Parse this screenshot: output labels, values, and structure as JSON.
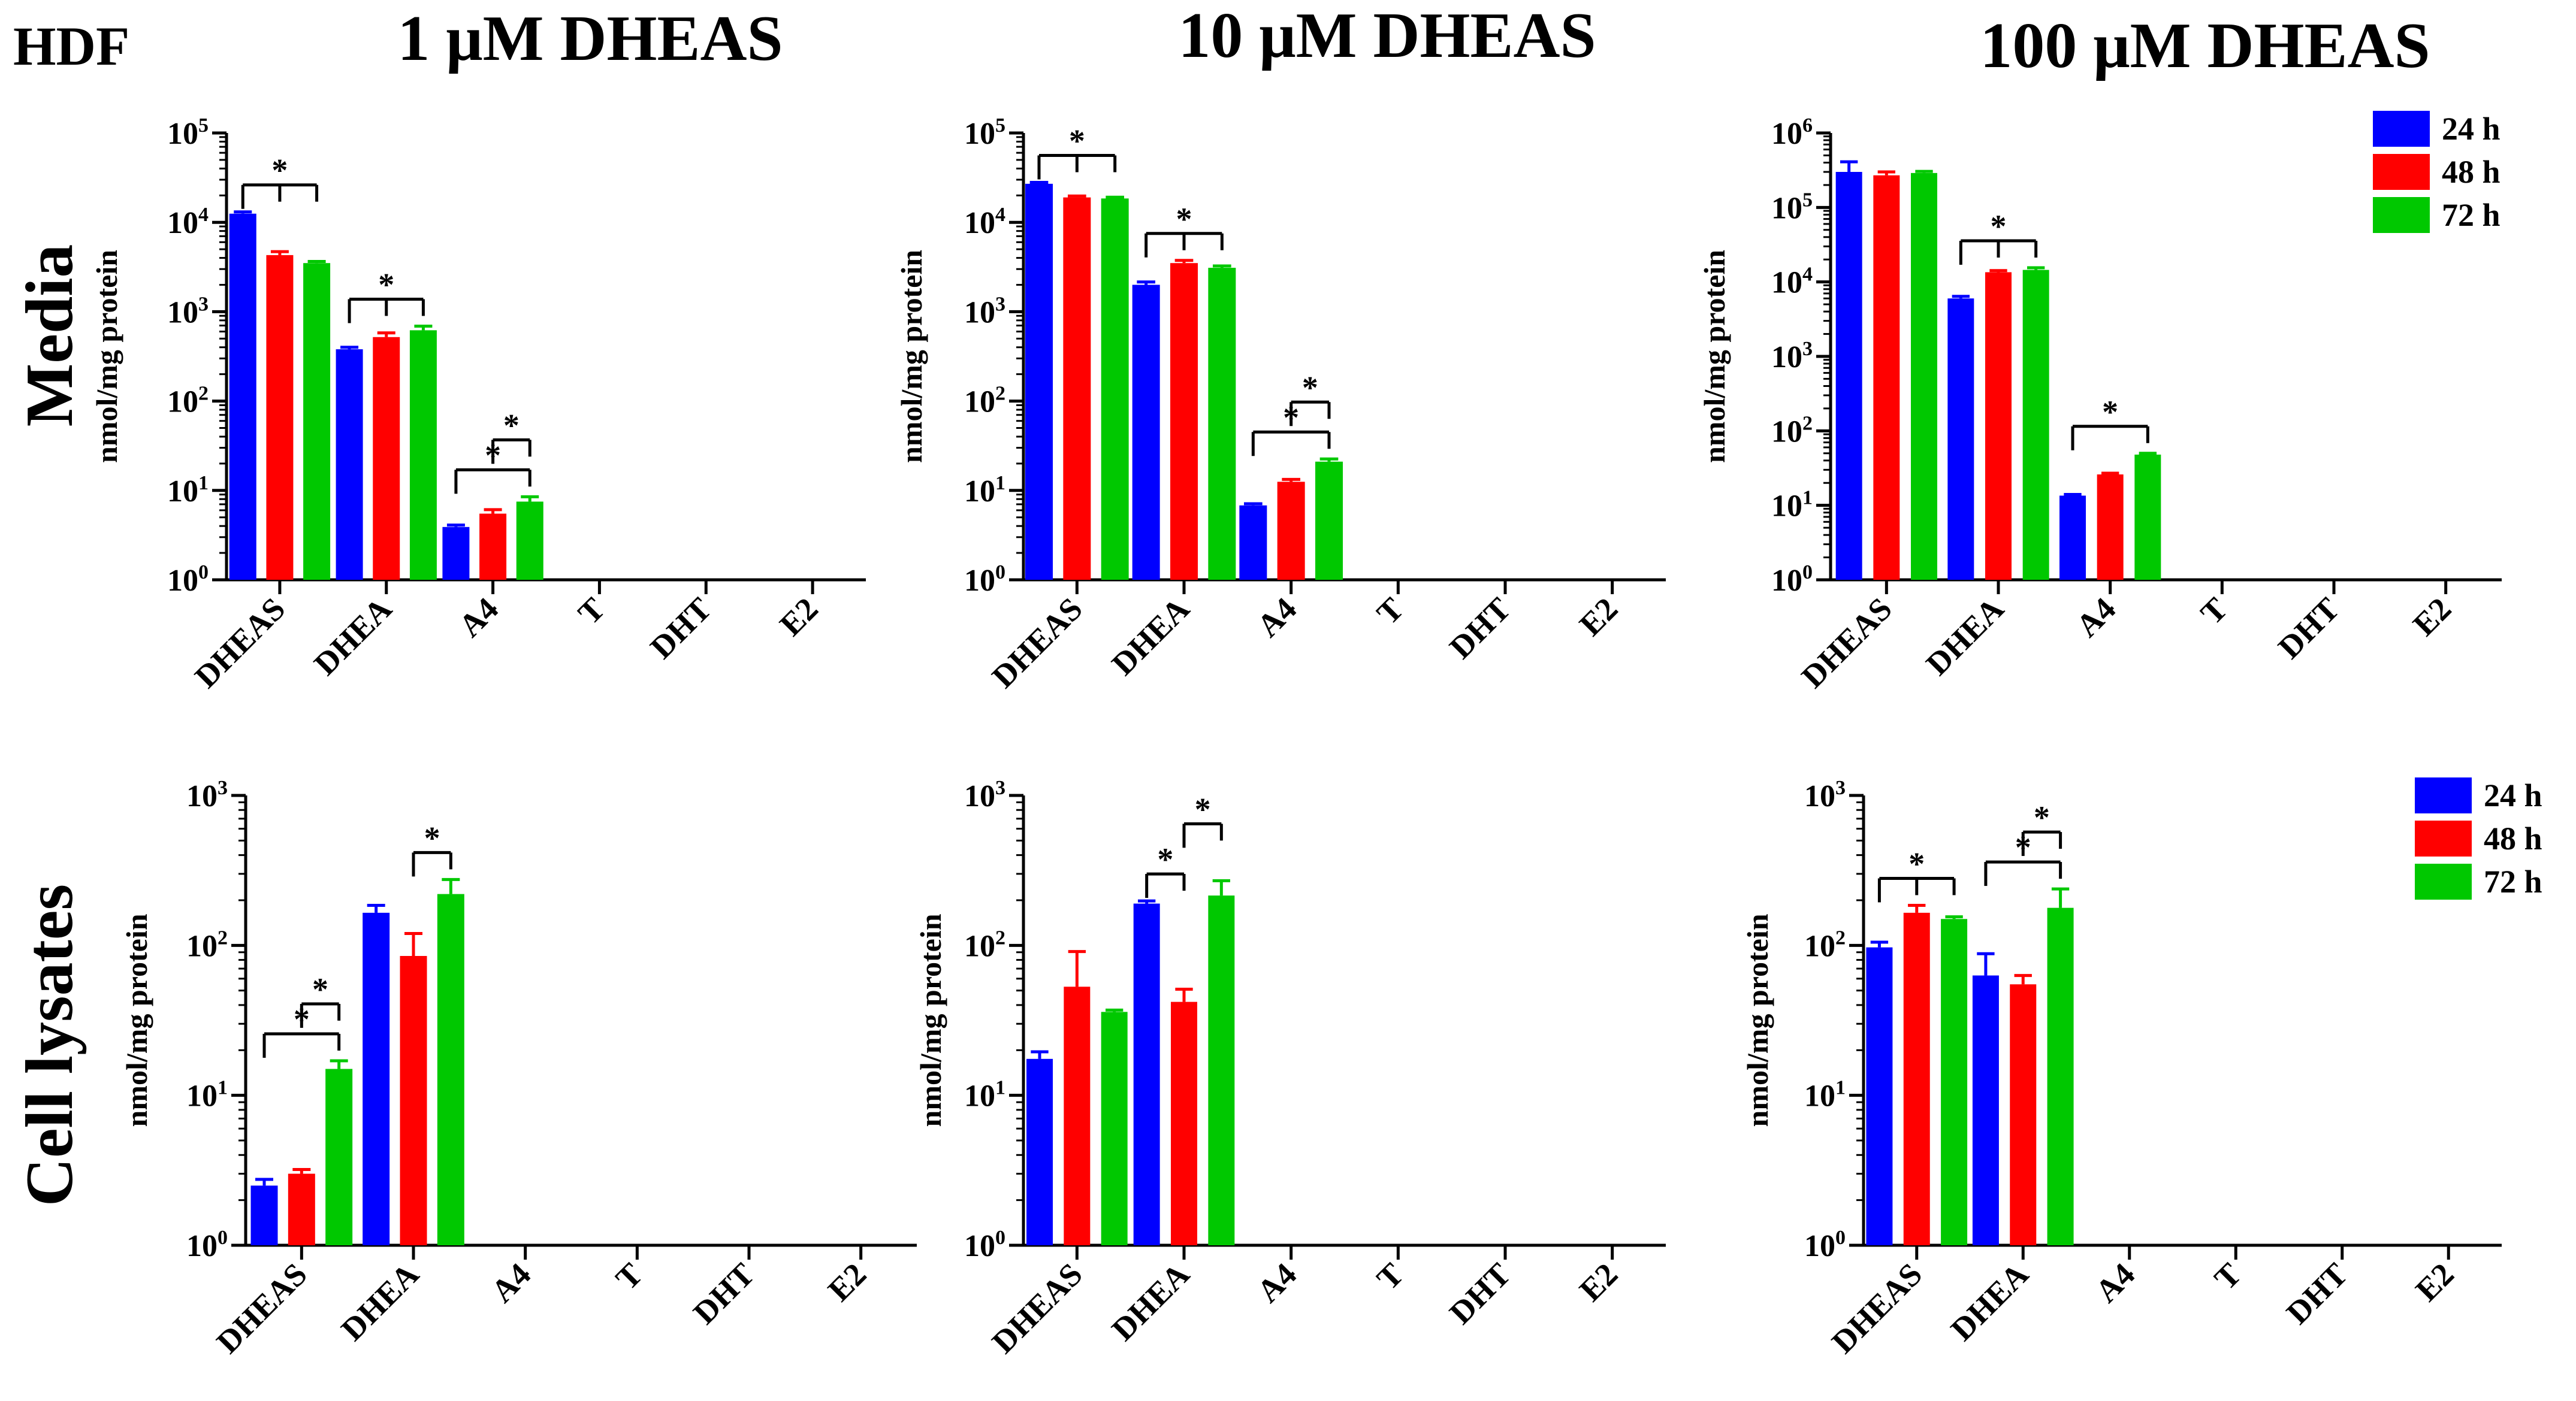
{
  "figure": {
    "cell_label": "HDF",
    "column_titles": [
      "1 μM  DHEAS",
      "10 μM  DHEAS",
      "100 μM  DHEAS"
    ],
    "row_titles": [
      "Media",
      "Cell lysates"
    ],
    "legend": {
      "series": [
        "24 h",
        "48 h",
        "72 h"
      ],
      "colors": [
        "#0000ff",
        "#ff0000",
        "#00c800"
      ]
    },
    "significance_mark": "*"
  },
  "chart_data": [
    {
      "type": "bar",
      "yscale": "log",
      "ylim": [
        1,
        100000
      ],
      "title": "1 μM  DHEAS",
      "row": "Media",
      "ylabel": "nmol/mg protein",
      "categories": [
        "DHEAS",
        "DHEA",
        "A4",
        "T",
        "DHT",
        "E2"
      ],
      "series": [
        {
          "name": "24 h",
          "values": [
            12500,
            380,
            3.9,
            null,
            null,
            null
          ],
          "errors": [
            600,
            20,
            0.2,
            null,
            null,
            null
          ]
        },
        {
          "name": "48 h",
          "values": [
            4300,
            520,
            5.5,
            null,
            null,
            null
          ],
          "errors": [
            400,
            60,
            0.6,
            null,
            null,
            null
          ]
        },
        {
          "name": "72 h",
          "values": [
            3500,
            620,
            7.5,
            null,
            null,
            null
          ],
          "errors": [
            150,
            70,
            1.0,
            null,
            null,
            null
          ]
        }
      ],
      "significance": [
        {
          "category": "DHEAS",
          "from": "24 h",
          "to": [
            "48 h",
            "72 h"
          ]
        },
        {
          "category": "DHEA",
          "from": "24 h",
          "to": [
            "48 h",
            "72 h"
          ]
        },
        {
          "category": "A4",
          "from": "24 h",
          "to": [
            "72 h"
          ]
        },
        {
          "category": "A4",
          "from": "48 h",
          "to": [
            "72 h"
          ]
        }
      ]
    },
    {
      "type": "bar",
      "yscale": "log",
      "ylim": [
        1,
        100000
      ],
      "title": "10 μM  DHEAS",
      "row": "Media",
      "ylabel": "nmol/mg protein",
      "categories": [
        "DHEAS",
        "DHEA",
        "A4",
        "T",
        "DHT",
        "E2"
      ],
      "series": [
        {
          "name": "24 h",
          "values": [
            27000,
            2000,
            6.8,
            null,
            null,
            null
          ],
          "errors": [
            1000,
            150,
            0.3,
            null,
            null,
            null
          ]
        },
        {
          "name": "48 h",
          "values": [
            19000,
            3500,
            12.5,
            null,
            null,
            null
          ],
          "errors": [
            700,
            250,
            0.8,
            null,
            null,
            null
          ]
        },
        {
          "name": "72 h",
          "values": [
            18500,
            3100,
            21,
            null,
            null,
            null
          ],
          "errors": [
            600,
            150,
            1.5,
            null,
            null,
            null
          ]
        }
      ],
      "significance": [
        {
          "category": "DHEAS",
          "from": "24 h",
          "to": [
            "48 h",
            "72 h"
          ]
        },
        {
          "category": "DHEA",
          "from": "24 h",
          "to": [
            "48 h",
            "72 h"
          ]
        },
        {
          "category": "A4",
          "from": "24 h",
          "to": [
            "72 h"
          ]
        },
        {
          "category": "A4",
          "from": "48 h",
          "to": [
            "72 h"
          ]
        }
      ]
    },
    {
      "type": "bar",
      "yscale": "log",
      "ylim": [
        1,
        1000000
      ],
      "title": "100 μM  DHEAS",
      "row": "Media",
      "ylabel": "nmol/mg protein",
      "categories": [
        "DHEAS",
        "DHEA",
        "A4",
        "T",
        "DHT",
        "E2"
      ],
      "series": [
        {
          "name": "24 h",
          "values": [
            300000,
            6000,
            13.5,
            null,
            null,
            null
          ],
          "errors": [
            110000,
            400,
            0.5,
            null,
            null,
            null
          ]
        },
        {
          "name": "48 h",
          "values": [
            270000,
            13500,
            26,
            null,
            null,
            null
          ],
          "errors": [
            30000,
            700,
            1.0,
            null,
            null,
            null
          ]
        },
        {
          "name": "72 h",
          "values": [
            290000,
            14500,
            48,
            null,
            null,
            null
          ],
          "errors": [
            15000,
            1000,
            2.0,
            null,
            null,
            null
          ]
        }
      ],
      "significance": [
        {
          "category": "DHEA",
          "from": "24 h",
          "to": [
            "48 h",
            "72 h"
          ]
        },
        {
          "category": "A4",
          "from": "24 h",
          "to": [
            "72 h"
          ]
        }
      ]
    },
    {
      "type": "bar",
      "yscale": "log",
      "ylim": [
        1,
        1000
      ],
      "title": "1 μM  DHEAS",
      "row": "Cell lysates",
      "ylabel": "nmol/mg protein",
      "categories": [
        "DHEAS",
        "DHEA",
        "A4",
        "T",
        "DHT",
        "E2"
      ],
      "series": [
        {
          "name": "24 h",
          "values": [
            2.5,
            165,
            null,
            null,
            null,
            null
          ],
          "errors": [
            0.25,
            20,
            null,
            null,
            null,
            null
          ]
        },
        {
          "name": "48 h",
          "values": [
            3.0,
            85,
            null,
            null,
            null,
            null
          ],
          "errors": [
            0.2,
            35,
            null,
            null,
            null,
            null
          ]
        },
        {
          "name": "72 h",
          "values": [
            15,
            220,
            null,
            null,
            null,
            null
          ],
          "errors": [
            2,
            55,
            null,
            null,
            null,
            null
          ]
        }
      ],
      "significance": [
        {
          "category": "DHEAS",
          "from": "24 h",
          "to": [
            "72 h"
          ]
        },
        {
          "category": "DHEAS",
          "from": "48 h",
          "to": [
            "72 h"
          ]
        },
        {
          "category": "DHEA",
          "from": "48 h",
          "to": [
            "72 h"
          ]
        }
      ]
    },
    {
      "type": "bar",
      "yscale": "log",
      "ylim": [
        1,
        1000
      ],
      "title": "10 μM  DHEAS",
      "row": "Cell lysates",
      "ylabel": "nmol/mg protein",
      "categories": [
        "DHEAS",
        "DHEA",
        "A4",
        "T",
        "DHT",
        "E2"
      ],
      "series": [
        {
          "name": "24 h",
          "values": [
            17.5,
            190,
            null,
            null,
            null,
            null
          ],
          "errors": [
            2,
            8,
            null,
            null,
            null,
            null
          ]
        },
        {
          "name": "48 h",
          "values": [
            53,
            42,
            null,
            null,
            null,
            null
          ],
          "errors": [
            38,
            9,
            null,
            null,
            null,
            null
          ]
        },
        {
          "name": "72 h",
          "values": [
            36,
            215,
            null,
            null,
            null,
            null
          ],
          "errors": [
            1,
            55,
            null,
            null,
            null,
            null
          ]
        }
      ],
      "significance": [
        {
          "category": "DHEA",
          "from": "24 h",
          "to": [
            "48 h"
          ]
        },
        {
          "category": "DHEA",
          "from": "48 h",
          "to": [
            "72 h"
          ]
        }
      ]
    },
    {
      "type": "bar",
      "yscale": "log",
      "ylim": [
        1,
        1000
      ],
      "title": "100 μM  DHEAS",
      "row": "Cell lysates",
      "ylabel": "nmol/mg protein",
      "categories": [
        "DHEAS",
        "DHEA",
        "A4",
        "T",
        "DHT",
        "E2"
      ],
      "series": [
        {
          "name": "24 h",
          "values": [
            97,
            63,
            null,
            null,
            null,
            null
          ],
          "errors": [
            8,
            25,
            null,
            null,
            null,
            null
          ]
        },
        {
          "name": "48 h",
          "values": [
            165,
            55,
            null,
            null,
            null,
            null
          ],
          "errors": [
            20,
            8,
            null,
            null,
            null,
            null
          ]
        },
        {
          "name": "72 h",
          "values": [
            150,
            178,
            null,
            null,
            null,
            null
          ],
          "errors": [
            5,
            60,
            null,
            null,
            null,
            null
          ]
        }
      ],
      "significance": [
        {
          "category": "DHEAS",
          "from": "24 h",
          "to": [
            "48 h",
            "72 h"
          ]
        },
        {
          "category": "DHEA",
          "from": "24 h",
          "to": [
            "72 h"
          ]
        },
        {
          "category": "DHEA",
          "from": "48 h",
          "to": [
            "72 h"
          ]
        }
      ]
    }
  ]
}
